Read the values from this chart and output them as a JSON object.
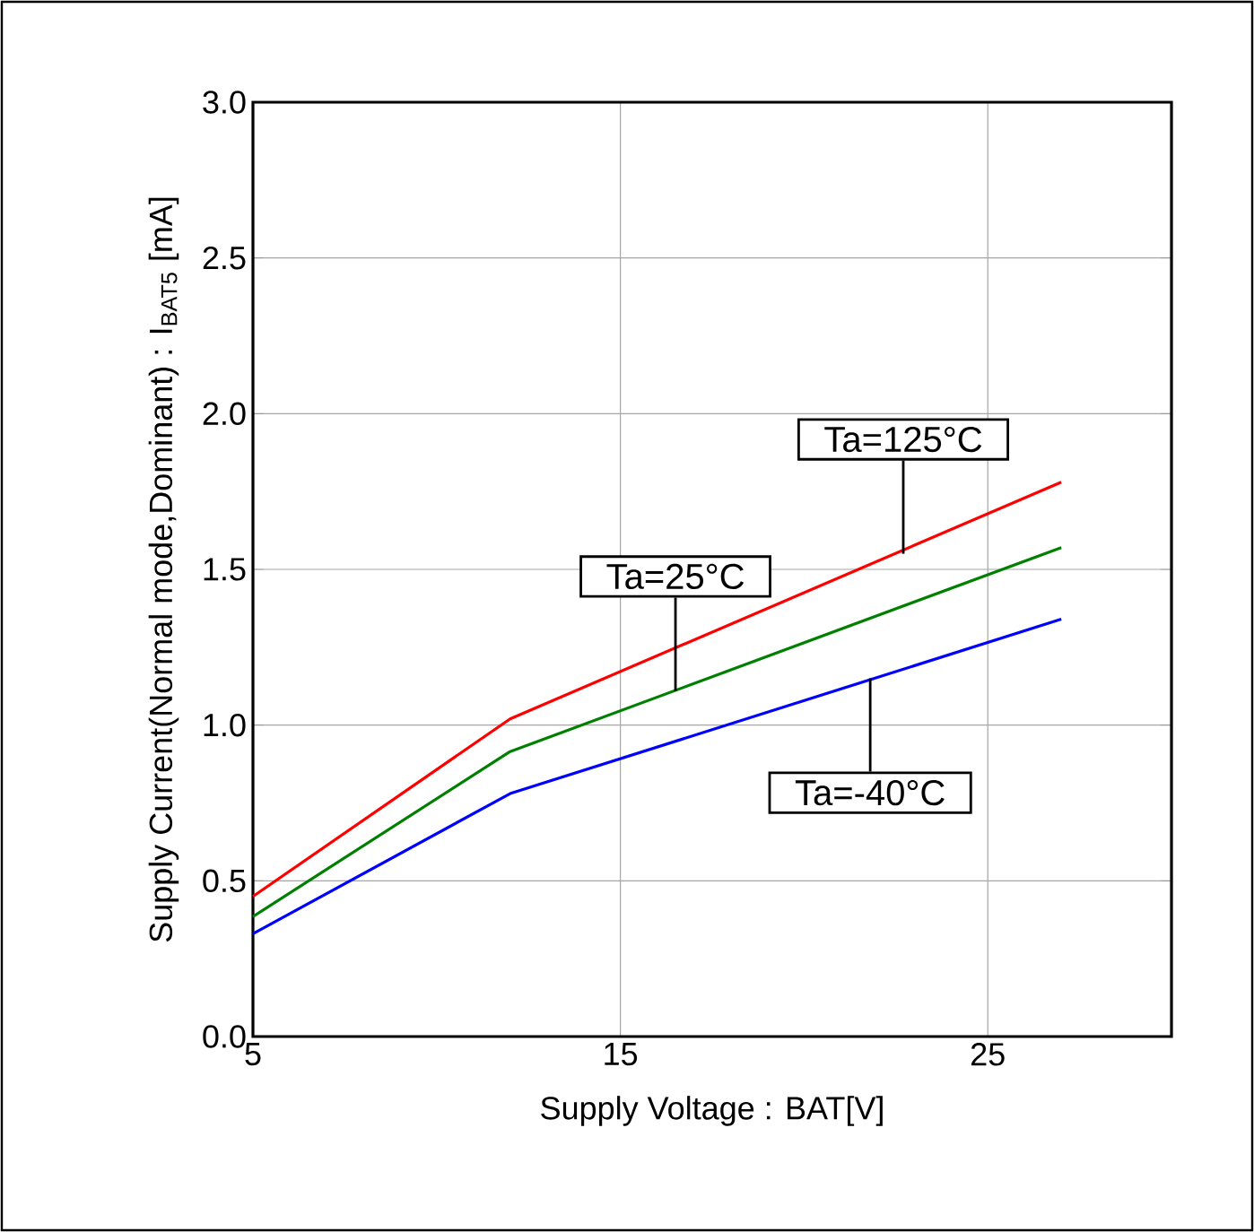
{
  "chart_data": {
    "type": "line",
    "xlabel": "Supply Voltage : BAT[V]",
    "ylabel": "Supply Current(Normal mode,Dominant) : I$_{BAT5}$ [mA]",
    "x": [
      5,
      12,
      27
    ],
    "series": [
      {
        "color": "#ff0000",
        "values": [
          0.45,
          1.02,
          1.78
        ]
      },
      {
        "color": "#008000",
        "values": [
          0.385,
          0.915,
          1.57
        ]
      },
      {
        "color": "#0000ff",
        "values": [
          0.33,
          0.78,
          1.34
        ]
      }
    ],
    "xlim": [
      5,
      30
    ],
    "xticks": [
      5,
      15,
      25
    ],
    "ylim": [
      0,
      3
    ],
    "yticks": [
      {
        "value": 0,
        "label": "0.0"
      },
      {
        "value": 0.5,
        "label": "0.5"
      },
      {
        "value": 1,
        "label": "1.0"
      },
      {
        "value": 1.5,
        "label": "1.5"
      },
      {
        "value": 2,
        "label": "2.0"
      },
      {
        "value": 2.5,
        "label": "2.5"
      },
      {
        "value": 3,
        "label": "3.0"
      }
    ],
    "grid": true,
    "annotations": [
      {
        "text": "Ta=125°C",
        "x": 22.7,
        "y": 1.55
      },
      {
        "text": "Ta=25°C",
        "x": 16.5,
        "y": 1.11
      },
      {
        "text": "Ta=-40°C",
        "x": 21.8,
        "y": 1.15
      }
    ]
  }
}
